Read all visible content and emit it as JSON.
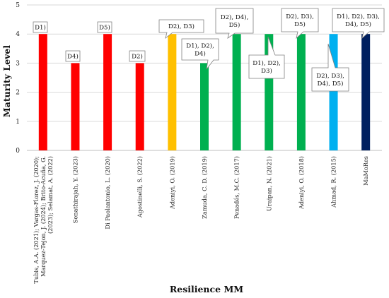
{
  "chart_data": {
    "type": "bar",
    "xlabel": "Resilience MM",
    "ylabel": "Maturity Level",
    "ylim": [
      0,
      5
    ],
    "yticks": [
      0,
      1,
      2,
      3,
      4,
      5
    ],
    "grid": true,
    "legend": "none",
    "bars": [
      {
        "category": [
          "Tubis, A.A. (2021); Vargas-Florez, J. (2020);",
          "Marquez-Tejon, J. (2024); Brito-Acuña, G.",
          "(2023); Selamat, A. (2022)"
        ],
        "value": 4,
        "color": "#ff0000",
        "callout": [
          "D1)"
        ]
      },
      {
        "category": [
          "Senathirajah, Y. (2023)"
        ],
        "value": 3,
        "color": "#ff0000",
        "callout": [
          "D4)"
        ]
      },
      {
        "category": [
          "Di Paolantonio, L. (2020)"
        ],
        "value": 4,
        "color": "#ff0000",
        "callout": [
          "D5)"
        ]
      },
      {
        "category": [
          "Agostinelli, S. (2022)"
        ],
        "value": 3,
        "color": "#ff0000",
        "callout": [
          "D2)"
        ]
      },
      {
        "category": [
          "Adeniyi, O. (2019)"
        ],
        "value": 4,
        "color": "#ffc000",
        "callout": [
          "D2), D3)"
        ]
      },
      {
        "category": [
          "Zamuda, C. D. (2019)"
        ],
        "value": 3,
        "color": "#00b050",
        "callout": [
          "D1), D2),",
          "D4)"
        ]
      },
      {
        "category": [
          "Penadés, M.C. (2017)"
        ],
        "value": 4,
        "color": "#00b050",
        "callout": [
          "D2), D4),",
          "D5)"
        ]
      },
      {
        "category": [
          "Uraipan, N. (2021)"
        ],
        "value": 4,
        "color": "#00b050",
        "callout": [
          "D1), D2),",
          "D3)"
        ]
      },
      {
        "category": [
          "Adeniyi, O. (2018)"
        ],
        "value": 4,
        "color": "#00b050",
        "callout": [
          "D2), D3),",
          "D5)"
        ]
      },
      {
        "category": [
          "Ahmad, R. (2015)"
        ],
        "value": 4,
        "color": "#00b0f0",
        "callout": [
          "D2), D3),",
          "D4), D5)"
        ]
      },
      {
        "category": [
          "MaMoRes"
        ],
        "value": 4,
        "color": "#002060",
        "callout": [
          "D1), D2), D3),",
          "D4), D5)"
        ]
      }
    ]
  }
}
